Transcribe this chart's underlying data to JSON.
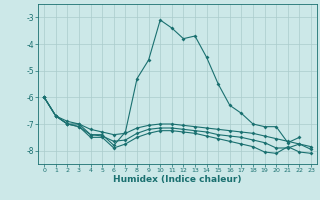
{
  "xlabel": "Humidex (Indice chaleur)",
  "bg_color": "#cce8e8",
  "grid_color": "#aacccc",
  "line_color": "#1a7070",
  "xlim": [
    -0.5,
    23.5
  ],
  "ylim": [
    -8.5,
    -2.5
  ],
  "yticks": [
    -8,
    -7,
    -6,
    -5,
    -4,
    -3
  ],
  "xticks": [
    0,
    1,
    2,
    3,
    4,
    5,
    6,
    7,
    8,
    9,
    10,
    11,
    12,
    13,
    14,
    15,
    16,
    17,
    18,
    19,
    20,
    21,
    22,
    23
  ],
  "lines": [
    {
      "x": [
        0,
        1,
        2,
        3,
        4,
        5,
        6,
        7,
        8,
        9,
        10,
        11,
        12,
        13,
        14,
        15,
        16,
        17,
        18,
        19,
        20,
        21,
        22
      ],
      "y": [
        -6.0,
        -6.7,
        -7.0,
        -7.0,
        -7.4,
        -7.4,
        -7.8,
        -7.3,
        -5.3,
        -4.6,
        -3.1,
        -3.4,
        -3.8,
        -3.7,
        -4.5,
        -5.5,
        -6.3,
        -6.6,
        -7.0,
        -7.1,
        -7.1,
        -7.7,
        -7.5
      ]
    },
    {
      "x": [
        0,
        1,
        2,
        3,
        4,
        5,
        6,
        7,
        8,
        9,
        10,
        11,
        12,
        13,
        14,
        15,
        16,
        17,
        18,
        19,
        20,
        21,
        22,
        23
      ],
      "y": [
        -6.0,
        -6.7,
        -6.9,
        -7.0,
        -7.2,
        -7.3,
        -7.4,
        -7.35,
        -7.15,
        -7.05,
        -7.0,
        -7.0,
        -7.05,
        -7.1,
        -7.15,
        -7.2,
        -7.25,
        -7.3,
        -7.35,
        -7.45,
        -7.55,
        -7.65,
        -7.75,
        -7.85
      ]
    },
    {
      "x": [
        0,
        1,
        2,
        3,
        4,
        5,
        6,
        7,
        8,
        9,
        10,
        11,
        12,
        13,
        14,
        15,
        16,
        17,
        18,
        19,
        20,
        21,
        22,
        23
      ],
      "y": [
        -6.0,
        -6.7,
        -7.0,
        -7.1,
        -7.4,
        -7.45,
        -7.65,
        -7.6,
        -7.35,
        -7.2,
        -7.15,
        -7.15,
        -7.2,
        -7.25,
        -7.3,
        -7.4,
        -7.45,
        -7.5,
        -7.6,
        -7.7,
        -7.9,
        -7.9,
        -7.75,
        -7.95
      ]
    },
    {
      "x": [
        0,
        1,
        2,
        3,
        4,
        5,
        6,
        7,
        8,
        9,
        10,
        11,
        12,
        13,
        14,
        15,
        16,
        17,
        18,
        19,
        20,
        21,
        22,
        23
      ],
      "y": [
        -6.0,
        -6.7,
        -7.0,
        -7.1,
        -7.5,
        -7.5,
        -7.9,
        -7.75,
        -7.5,
        -7.35,
        -7.25,
        -7.25,
        -7.3,
        -7.35,
        -7.45,
        -7.55,
        -7.65,
        -7.75,
        -7.85,
        -8.05,
        -8.1,
        -7.85,
        -8.05,
        -8.1
      ]
    }
  ]
}
